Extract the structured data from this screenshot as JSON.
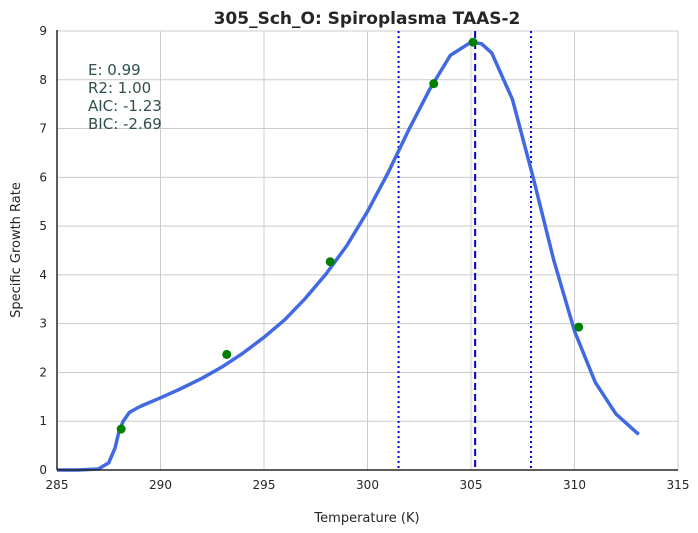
{
  "chart_data": {
    "type": "line",
    "title": "305_Sch_O: Spiroplasma TAAS-2",
    "xlabel": "Temperature (K)",
    "ylabel": "Specific Growth Rate",
    "xlim": [
      285,
      315
    ],
    "ylim": [
      0,
      9
    ],
    "xticks": [
      "285",
      "290",
      "295",
      "300",
      "305",
      "310",
      "315"
    ],
    "yticks": [
      "0",
      "1",
      "2",
      "3",
      "4",
      "5",
      "6",
      "7",
      "8",
      "9"
    ],
    "grid": true,
    "stats": [
      "E:  0.99",
      "R2:  1.00",
      "AIC: -1.23",
      "BIC: -2.69"
    ],
    "fit_curve": {
      "color": "#4169e1",
      "x": [
        285,
        286,
        287,
        287.5,
        287.8,
        288,
        288.2,
        288.5,
        289,
        290,
        291,
        292,
        293,
        294,
        295,
        296,
        297,
        298,
        299,
        300,
        301,
        302,
        303,
        304,
        305,
        305.5,
        306,
        307,
        308,
        309,
        310,
        311,
        312,
        313.1
      ],
      "y": [
        0,
        0,
        0.02,
        0.15,
        0.45,
        0.8,
        1.0,
        1.18,
        1.3,
        1.48,
        1.67,
        1.88,
        2.12,
        2.4,
        2.72,
        3.08,
        3.52,
        4.02,
        4.6,
        5.3,
        6.1,
        6.98,
        7.8,
        8.5,
        8.77,
        8.74,
        8.55,
        7.6,
        6.0,
        4.3,
        2.85,
        1.8,
        1.15,
        0.73
      ]
    },
    "observed": {
      "color": "#008000",
      "x": [
        288.1,
        293.2,
        298.2,
        303.2,
        305.1,
        310.2
      ],
      "y": [
        0.84,
        2.37,
        4.27,
        7.92,
        8.77,
        2.93
      ]
    },
    "vlines": [
      {
        "x": 301.5,
        "style": "dotted",
        "color": "#0000ff"
      },
      {
        "x": 305.2,
        "style": "dashed",
        "color": "#0000cd"
      },
      {
        "x": 307.9,
        "style": "dotted",
        "color": "#0000ff"
      }
    ]
  }
}
